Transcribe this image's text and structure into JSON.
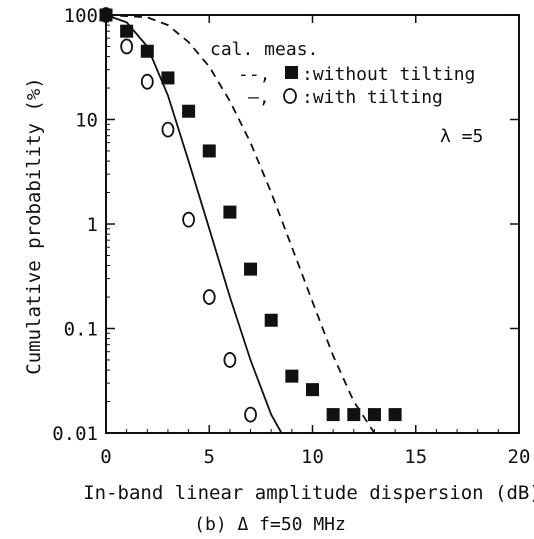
{
  "chart_data": {
    "type": "scatter",
    "xlabel": "In-band linear amplitude dispersion (dB)",
    "ylabel": "Cumulative probability (%)",
    "caption": "(b) Δ f=50 MHz",
    "annotation": "λ =5",
    "xlim": [
      0,
      20
    ],
    "ylim": [
      0.01,
      100
    ],
    "y_scale": "log",
    "x_ticks": [
      0,
      5,
      10,
      15,
      20
    ],
    "y_ticks": [
      0.01,
      0.1,
      1,
      10,
      100
    ],
    "x_tick_labels": [
      "0",
      "5",
      "10",
      "15",
      "20"
    ],
    "y_tick_labels": [
      "0.01",
      "0.1",
      "1",
      "10",
      "100"
    ],
    "legend": {
      "header": "cal. meas.",
      "entries": [
        {
          "cal": "--,",
          "meas": "■",
          "label": ":without tilting"
        },
        {
          "cal": "–,",
          "meas": "O",
          "label": ":with tilting"
        }
      ]
    },
    "series": [
      {
        "name": "without tilting",
        "kind": "measured",
        "marker": "filled-square",
        "x": [
          0,
          1,
          2,
          3,
          4,
          5,
          6,
          7,
          8,
          9,
          10,
          11,
          12,
          13,
          14
        ],
        "y": [
          100,
          70,
          45,
          25,
          12,
          5,
          1.3,
          0.37,
          0.12,
          0.035,
          0.026,
          0.015,
          0.015,
          0.015,
          0.015
        ]
      },
      {
        "name": "with tilting",
        "kind": "measured",
        "marker": "open-circle",
        "x": [
          0,
          1,
          2,
          3,
          4,
          5,
          6,
          7
        ],
        "y": [
          100,
          50,
          23,
          8,
          1.1,
          0.2,
          0.05,
          0.015
        ]
      },
      {
        "name": "without tilting",
        "kind": "calculated",
        "line": "dashed",
        "x": [
          0,
          2,
          3,
          4,
          5,
          6,
          7,
          8,
          9,
          10,
          11,
          12,
          13
        ],
        "y": [
          100,
          95,
          80,
          55,
          32,
          15,
          6,
          2,
          0.6,
          0.18,
          0.055,
          0.02,
          0.01
        ]
      },
      {
        "name": "with tilting",
        "kind": "calculated",
        "line": "solid",
        "x": [
          0,
          1,
          2,
          3,
          4,
          5,
          6,
          7,
          8,
          8.5
        ],
        "y": [
          100,
          85,
          50,
          17,
          4,
          0.9,
          0.2,
          0.05,
          0.015,
          0.01
        ]
      }
    ]
  }
}
